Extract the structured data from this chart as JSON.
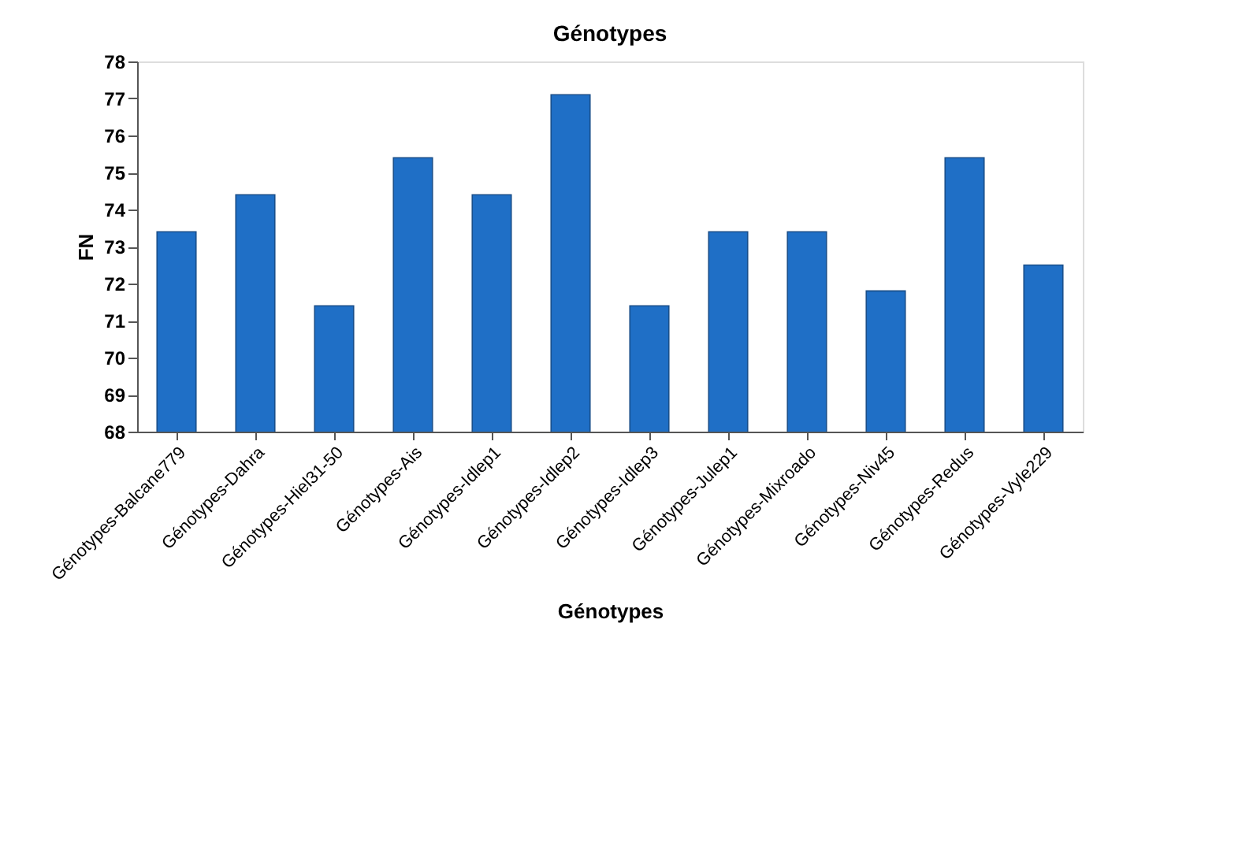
{
  "chart_data": {
    "type": "bar",
    "title": "Génotypes",
    "xlabel": "Génotypes",
    "ylabel": "FN",
    "categories": [
      "Génotypes-Balcane779",
      "Génotypes-Dahra",
      "Génotypes-Hiel31-50",
      "Génotypes-Ais",
      "Génotypes-Idlep1",
      "Génotypes-Idlep2",
      "Génotypes-Idlep3",
      "Génotypes-Julep1",
      "Génotypes-Mixroado",
      "Génotypes-Niv45",
      "Génotypes-Redus",
      "Génotypes-Vyle229"
    ],
    "values": [
      73.4,
      74.4,
      71.4,
      75.4,
      74.4,
      77.1,
      71.4,
      73.4,
      73.4,
      71.8,
      75.4,
      72.5
    ],
    "color": "#1f6fc6",
    "ylim": [
      68,
      78
    ],
    "yticks": [
      68,
      69,
      70,
      71,
      72,
      73,
      74,
      75,
      76,
      77,
      78
    ],
    "grid": false
  }
}
